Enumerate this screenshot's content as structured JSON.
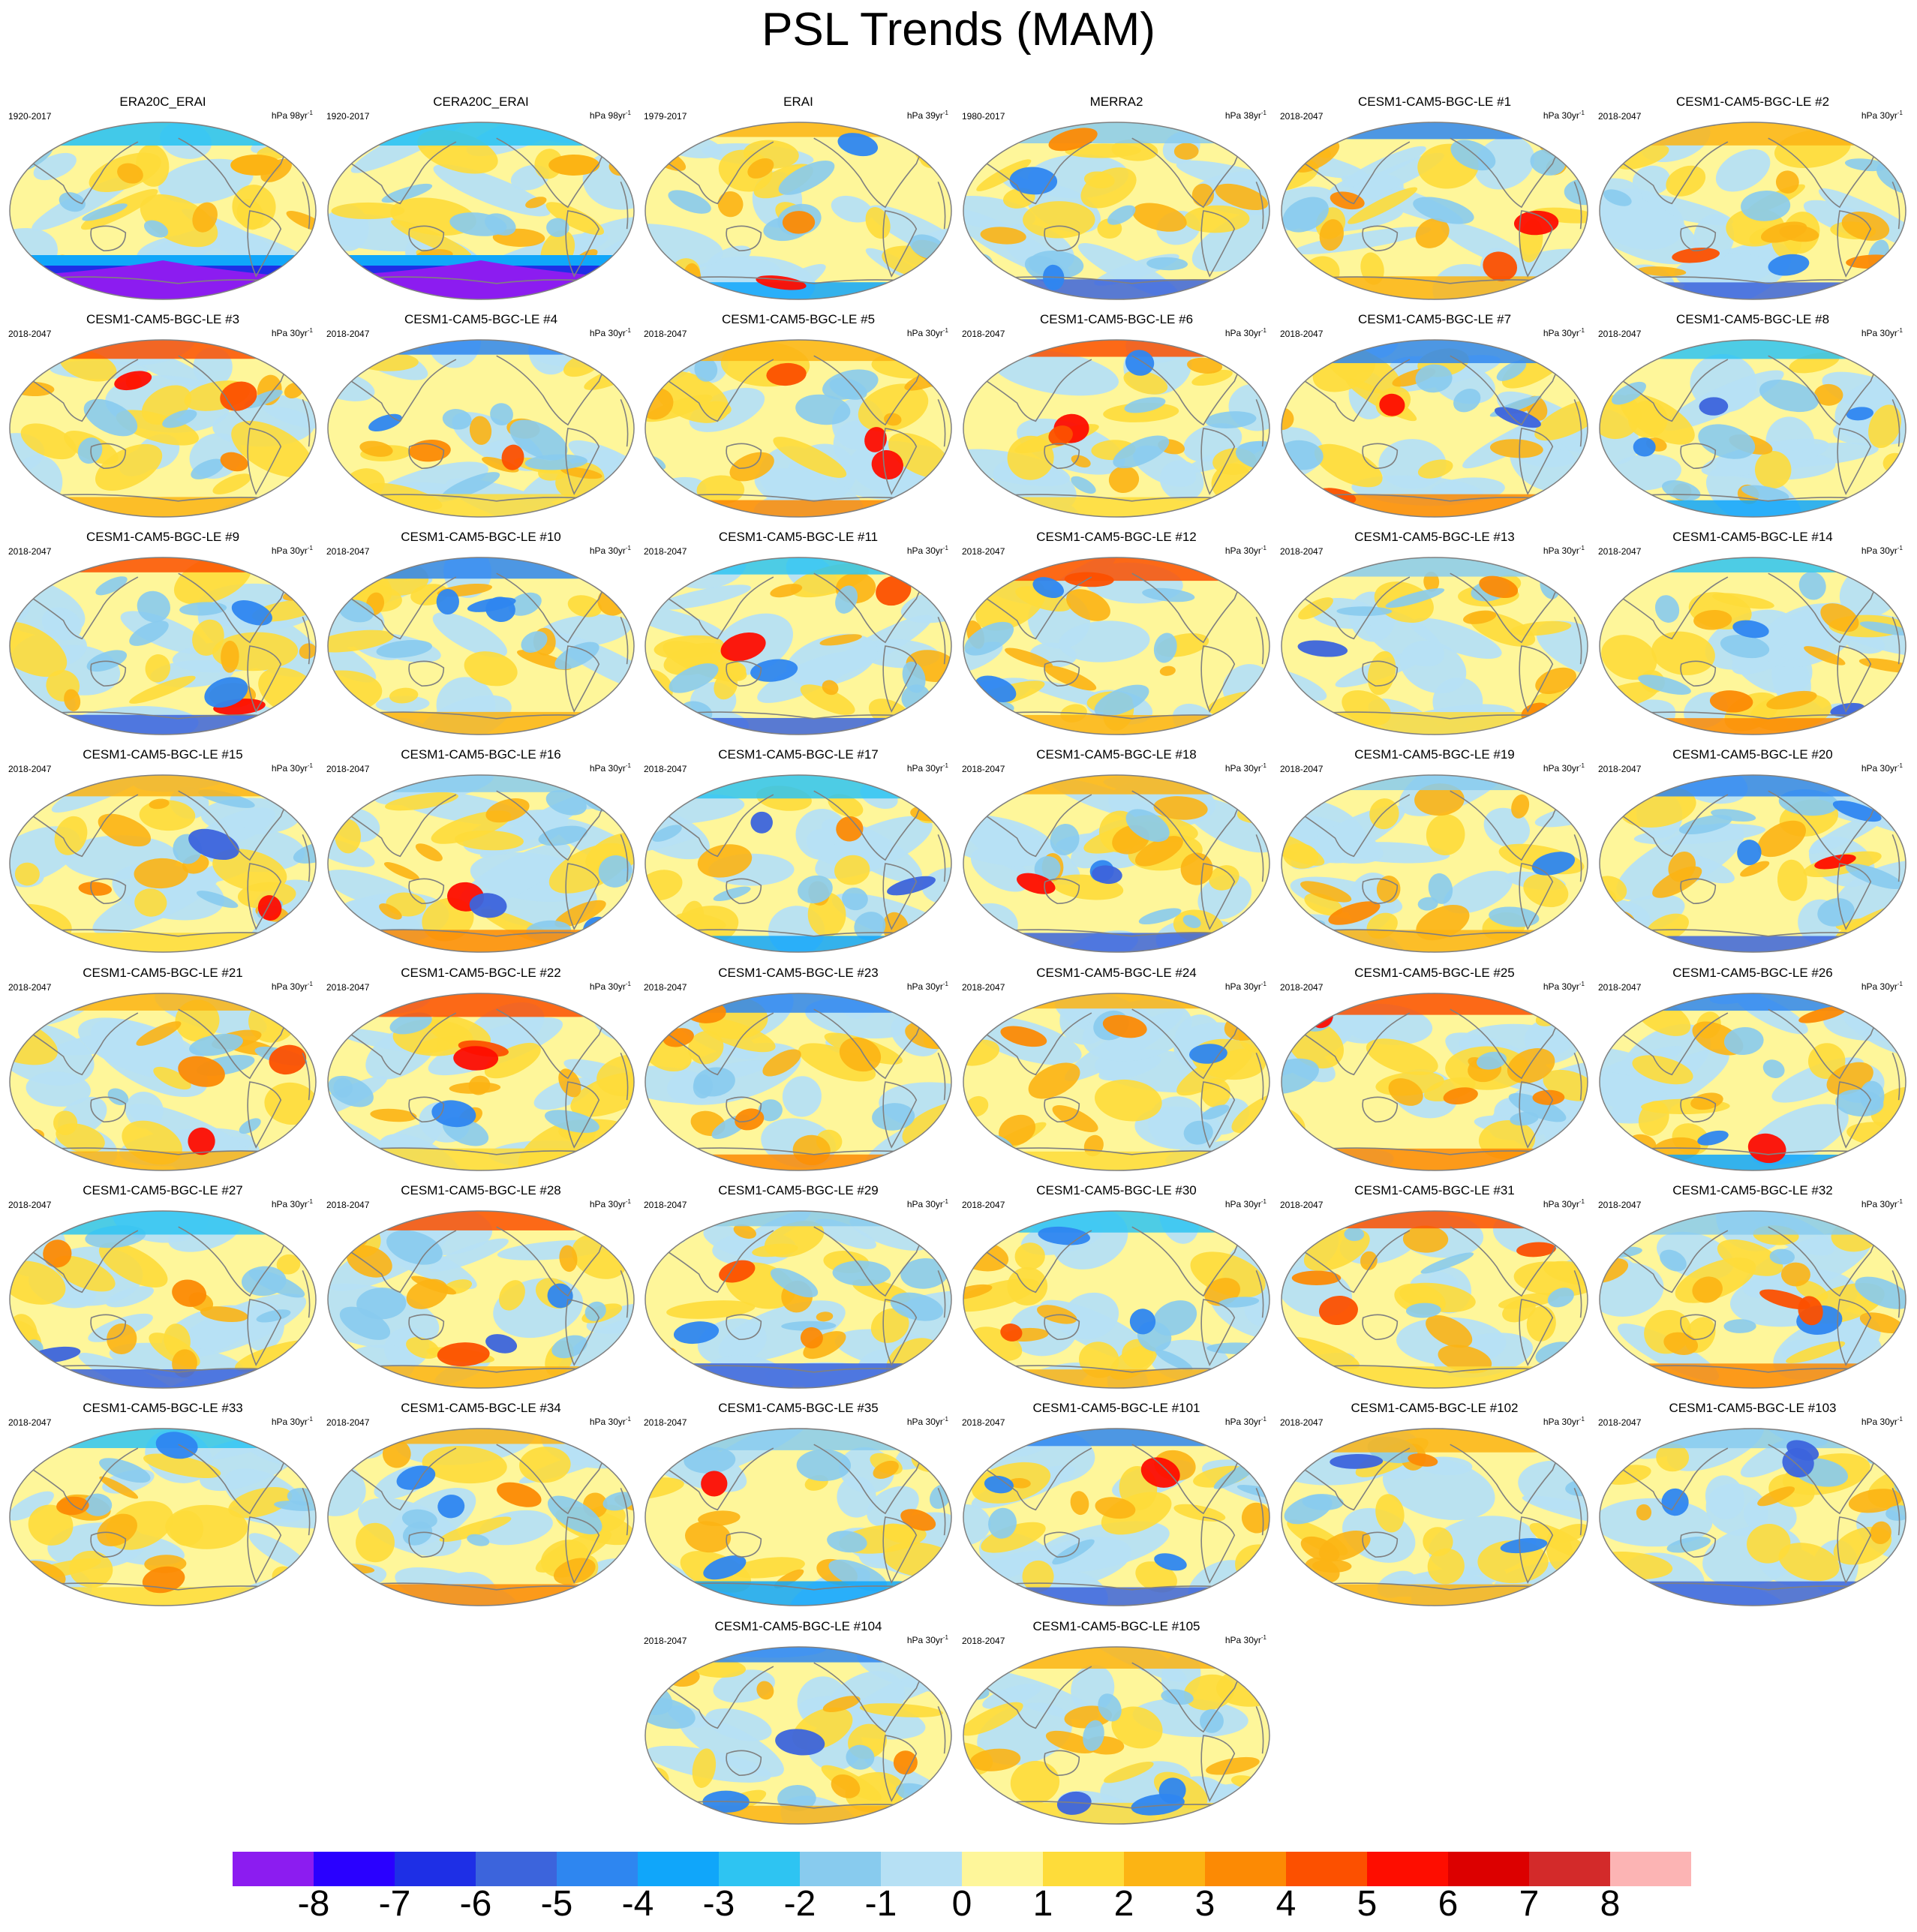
{
  "title": "PSL Trends (MAM)",
  "panels": [
    {
      "name": "ERA20C_ERAI",
      "period": "1920-2017",
      "units": "hPa 98yr",
      "units_sup": "-1",
      "style": "reanalysis20c"
    },
    {
      "name": "CERA20C_ERAI",
      "period": "1920-2017",
      "units": "hPa 98yr",
      "units_sup": "-1",
      "style": "reanalysis20c"
    },
    {
      "name": "ERAI",
      "period": "1979-2017",
      "units": "hPa 39yr",
      "units_sup": "-1",
      "style": "reanalysis"
    },
    {
      "name": "MERRA2",
      "period": "1980-2017",
      "units": "hPa 38yr",
      "units_sup": "-1",
      "style": "reanalysis"
    },
    {
      "name": "CESM1-CAM5-BGC-LE #1",
      "period": "2018-2047",
      "units": "hPa 30yr",
      "units_sup": "-1",
      "style": "model"
    },
    {
      "name": "CESM1-CAM5-BGC-LE #2",
      "period": "2018-2047",
      "units": "hPa 30yr",
      "units_sup": "-1",
      "style": "model"
    },
    {
      "name": "CESM1-CAM5-BGC-LE #3",
      "period": "2018-2047",
      "units": "hPa 30yr",
      "units_sup": "-1",
      "style": "model"
    },
    {
      "name": "CESM1-CAM5-BGC-LE #4",
      "period": "2018-2047",
      "units": "hPa 30yr",
      "units_sup": "-1",
      "style": "model"
    },
    {
      "name": "CESM1-CAM5-BGC-LE #5",
      "period": "2018-2047",
      "units": "hPa 30yr",
      "units_sup": "-1",
      "style": "model"
    },
    {
      "name": "CESM1-CAM5-BGC-LE #6",
      "period": "2018-2047",
      "units": "hPa 30yr",
      "units_sup": "-1",
      "style": "model"
    },
    {
      "name": "CESM1-CAM5-BGC-LE #7",
      "period": "2018-2047",
      "units": "hPa 30yr",
      "units_sup": "-1",
      "style": "model"
    },
    {
      "name": "CESM1-CAM5-BGC-LE #8",
      "period": "2018-2047",
      "units": "hPa 30yr",
      "units_sup": "-1",
      "style": "model"
    },
    {
      "name": "CESM1-CAM5-BGC-LE #9",
      "period": "2018-2047",
      "units": "hPa 30yr",
      "units_sup": "-1",
      "style": "model"
    },
    {
      "name": "CESM1-CAM5-BGC-LE #10",
      "period": "2018-2047",
      "units": "hPa 30yr",
      "units_sup": "-1",
      "style": "model"
    },
    {
      "name": "CESM1-CAM5-BGC-LE #11",
      "period": "2018-2047",
      "units": "hPa 30yr",
      "units_sup": "-1",
      "style": "model"
    },
    {
      "name": "CESM1-CAM5-BGC-LE #12",
      "period": "2018-2047",
      "units": "hPa 30yr",
      "units_sup": "-1",
      "style": "model"
    },
    {
      "name": "CESM1-CAM5-BGC-LE #13",
      "period": "2018-2047",
      "units": "hPa 30yr",
      "units_sup": "-1",
      "style": "model"
    },
    {
      "name": "CESM1-CAM5-BGC-LE #14",
      "period": "2018-2047",
      "units": "hPa 30yr",
      "units_sup": "-1",
      "style": "model"
    },
    {
      "name": "CESM1-CAM5-BGC-LE #15",
      "period": "2018-2047",
      "units": "hPa 30yr",
      "units_sup": "-1",
      "style": "model"
    },
    {
      "name": "CESM1-CAM5-BGC-LE #16",
      "period": "2018-2047",
      "units": "hPa 30yr",
      "units_sup": "-1",
      "style": "model"
    },
    {
      "name": "CESM1-CAM5-BGC-LE #17",
      "period": "2018-2047",
      "units": "hPa 30yr",
      "units_sup": "-1",
      "style": "model"
    },
    {
      "name": "CESM1-CAM5-BGC-LE #18",
      "period": "2018-2047",
      "units": "hPa 30yr",
      "units_sup": "-1",
      "style": "model"
    },
    {
      "name": "CESM1-CAM5-BGC-LE #19",
      "period": "2018-2047",
      "units": "hPa 30yr",
      "units_sup": "-1",
      "style": "model"
    },
    {
      "name": "CESM1-CAM5-BGC-LE #20",
      "period": "2018-2047",
      "units": "hPa 30yr",
      "units_sup": "-1",
      "style": "model"
    },
    {
      "name": "CESM1-CAM5-BGC-LE #21",
      "period": "2018-2047",
      "units": "hPa 30yr",
      "units_sup": "-1",
      "style": "model"
    },
    {
      "name": "CESM1-CAM5-BGC-LE #22",
      "period": "2018-2047",
      "units": "hPa 30yr",
      "units_sup": "-1",
      "style": "model"
    },
    {
      "name": "CESM1-CAM5-BGC-LE #23",
      "period": "2018-2047",
      "units": "hPa 30yr",
      "units_sup": "-1",
      "style": "model"
    },
    {
      "name": "CESM1-CAM5-BGC-LE #24",
      "period": "2018-2047",
      "units": "hPa 30yr",
      "units_sup": "-1",
      "style": "model"
    },
    {
      "name": "CESM1-CAM5-BGC-LE #25",
      "period": "2018-2047",
      "units": "hPa 30yr",
      "units_sup": "-1",
      "style": "model"
    },
    {
      "name": "CESM1-CAM5-BGC-LE #26",
      "period": "2018-2047",
      "units": "hPa 30yr",
      "units_sup": "-1",
      "style": "model"
    },
    {
      "name": "CESM1-CAM5-BGC-LE #27",
      "period": "2018-2047",
      "units": "hPa 30yr",
      "units_sup": "-1",
      "style": "model"
    },
    {
      "name": "CESM1-CAM5-BGC-LE #28",
      "period": "2018-2047",
      "units": "hPa 30yr",
      "units_sup": "-1",
      "style": "model"
    },
    {
      "name": "CESM1-CAM5-BGC-LE #29",
      "period": "2018-2047",
      "units": "hPa 30yr",
      "units_sup": "-1",
      "style": "model"
    },
    {
      "name": "CESM1-CAM5-BGC-LE #30",
      "period": "2018-2047",
      "units": "hPa 30yr",
      "units_sup": "-1",
      "style": "model"
    },
    {
      "name": "CESM1-CAM5-BGC-LE #31",
      "period": "2018-2047",
      "units": "hPa 30yr",
      "units_sup": "-1",
      "style": "model"
    },
    {
      "name": "CESM1-CAM5-BGC-LE #32",
      "period": "2018-2047",
      "units": "hPa 30yr",
      "units_sup": "-1",
      "style": "model"
    },
    {
      "name": "CESM1-CAM5-BGC-LE #33",
      "period": "2018-2047",
      "units": "hPa 30yr",
      "units_sup": "-1",
      "style": "model"
    },
    {
      "name": "CESM1-CAM5-BGC-LE #34",
      "period": "2018-2047",
      "units": "hPa 30yr",
      "units_sup": "-1",
      "style": "model"
    },
    {
      "name": "CESM1-CAM5-BGC-LE #35",
      "period": "2018-2047",
      "units": "hPa 30yr",
      "units_sup": "-1",
      "style": "model"
    },
    {
      "name": "CESM1-CAM5-BGC-LE #101",
      "period": "2018-2047",
      "units": "hPa 30yr",
      "units_sup": "-1",
      "style": "model"
    },
    {
      "name": "CESM1-CAM5-BGC-LE #102",
      "period": "2018-2047",
      "units": "hPa 30yr",
      "units_sup": "-1",
      "style": "model"
    },
    {
      "name": "CESM1-CAM5-BGC-LE #103",
      "period": "2018-2047",
      "units": "hPa 30yr",
      "units_sup": "-1",
      "style": "model"
    },
    {
      "name": "CESM1-CAM5-BGC-LE #104",
      "period": "2018-2047",
      "units": "hPa 30yr",
      "units_sup": "-1",
      "style": "model"
    },
    {
      "name": "CESM1-CAM5-BGC-LE #105",
      "period": "2018-2047",
      "units": "hPa 30yr",
      "units_sup": "-1",
      "style": "model"
    }
  ],
  "colorbar": {
    "labels": [
      "-8",
      "-7",
      "-6",
      "-5",
      "-4",
      "-3",
      "-2",
      "-1",
      "0",
      "1",
      "2",
      "3",
      "4",
      "5",
      "6",
      "7",
      "8"
    ],
    "colors": [
      "#8c1cf0",
      "#2a00ff",
      "#1e2fe6",
      "#3c64dc",
      "#2e86f0",
      "#10a6fa",
      "#2ec4f2",
      "#88cbee",
      "#b6e0f4",
      "#fef69a",
      "#fedc3a",
      "#fcb414",
      "#fc8a04",
      "#fc5000",
      "#fe0d00",
      "#dc0000",
      "#d32a2a",
      "#fcb4b4"
    ],
    "land_outline_color": "#808080"
  }
}
